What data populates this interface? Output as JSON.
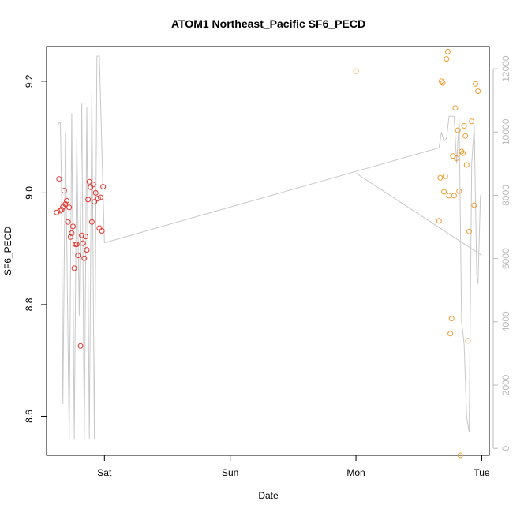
{
  "chart_data": {
    "type": "scatter",
    "title": "ATOM1 Northeast_Pacific SF6_PECD",
    "xlabel": "Date",
    "ylabel": "SF6_PECD",
    "x_ticks": [
      "Sat",
      "Sun",
      "Mon",
      "Tue"
    ],
    "x_tick_values": [
      1.0,
      2.0,
      3.0,
      4.0
    ],
    "xlim": [
      0.54,
      4.06
    ],
    "ylim": [
      8.53,
      9.262
    ],
    "y_ticks": [
      8.6,
      8.8,
      9.0,
      9.2
    ],
    "y_tick_labels": [
      "8.6",
      "8.8",
      "9.0",
      "9.2"
    ],
    "y2lim": [
      -220,
      12700
    ],
    "y2_ticks": [
      0,
      2000,
      4000,
      6000,
      8000,
      10000,
      12000
    ],
    "y2_tick_labels": [
      "0",
      "2000",
      "4000",
      "6000",
      "8000",
      "10000",
      "12000"
    ],
    "colors": {
      "early_points": "#e8302a",
      "late_points": "#f29a2e",
      "line": "#c8c8c8",
      "right_axis": "#bbbbbb"
    },
    "series": [
      {
        "color": "#e8302a",
        "points": [
          [
            0.62,
            8.965
          ],
          [
            0.64,
            9.025
          ],
          [
            0.65,
            8.968
          ],
          [
            0.66,
            8.97
          ],
          [
            0.67,
            8.975
          ],
          [
            0.68,
            9.004
          ],
          [
            0.69,
            8.98
          ],
          [
            0.7,
            8.986
          ],
          [
            0.71,
            8.948
          ],
          [
            0.72,
            8.974
          ],
          [
            0.73,
            8.921
          ],
          [
            0.74,
            8.928
          ],
          [
            0.75,
            8.94
          ],
          [
            0.76,
            8.865
          ],
          [
            0.77,
            8.908
          ],
          [
            0.78,
            8.908
          ],
          [
            0.79,
            8.888
          ],
          [
            0.81,
            8.726
          ],
          [
            0.82,
            8.924
          ],
          [
            0.83,
            8.91
          ],
          [
            0.84,
            8.883
          ],
          [
            0.85,
            8.922
          ],
          [
            0.86,
            8.898
          ],
          [
            0.87,
            8.988
          ],
          [
            0.88,
            9.02
          ],
          [
            0.89,
            9.01
          ],
          [
            0.9,
            8.948
          ],
          [
            0.91,
            9.015
          ],
          [
            0.92,
            8.984
          ],
          [
            0.93,
            9.0
          ],
          [
            0.95,
            8.99
          ],
          [
            0.96,
            8.937
          ],
          [
            0.97,
            8.992
          ],
          [
            0.98,
            8.932
          ],
          [
            0.99,
            9.011
          ]
        ]
      },
      {
        "color": "#f29a2e",
        "points": [
          [
            3.0,
            9.218
          ],
          [
            3.66,
            8.95
          ],
          [
            3.67,
            9.027
          ],
          [
            3.68,
            9.2
          ],
          [
            3.69,
            9.197
          ],
          [
            3.7,
            9.002
          ],
          [
            3.71,
            9.03
          ],
          [
            3.72,
            9.24
          ],
          [
            3.73,
            9.253
          ],
          [
            3.74,
            8.995
          ],
          [
            3.75,
            8.748
          ],
          [
            3.76,
            8.775
          ],
          [
            3.77,
            9.066
          ],
          [
            3.78,
            8.995
          ],
          [
            3.79,
            9.152
          ],
          [
            3.8,
            9.062
          ],
          [
            3.81,
            9.112
          ],
          [
            3.82,
            9.003
          ],
          [
            3.83,
            8.53
          ],
          [
            3.84,
            9.074
          ],
          [
            3.85,
            9.071
          ],
          [
            3.86,
            9.12
          ],
          [
            3.87,
            9.102
          ],
          [
            3.88,
            9.05
          ],
          [
            3.89,
            8.735
          ],
          [
            3.9,
            8.931
          ],
          [
            3.92,
            9.128
          ],
          [
            3.94,
            8.978
          ],
          [
            3.95,
            9.195
          ],
          [
            3.97,
            9.182
          ]
        ]
      }
    ],
    "line_series": {
      "axis": "right",
      "color": "#c8c8c8",
      "segments": [
        [
          [
            0.63,
            10200
          ],
          [
            0.64,
            10300
          ],
          [
            0.65,
            10300
          ],
          [
            0.66,
            8000
          ],
          [
            0.67,
            1400
          ],
          [
            0.69,
            10000
          ],
          [
            0.72,
            300
          ],
          [
            0.74,
            10600
          ],
          [
            0.76,
            300
          ],
          [
            0.78,
            9800
          ],
          [
            0.8,
            4200
          ],
          [
            0.82,
            10900
          ],
          [
            0.84,
            300
          ],
          [
            0.86,
            10800
          ],
          [
            0.88,
            300
          ],
          [
            0.9,
            11300
          ],
          [
            0.92,
            300
          ],
          [
            0.94,
            12400
          ],
          [
            0.96,
            12400
          ],
          [
            1.0,
            6500
          ]
        ],
        [
          [
            1.0,
            6500
          ],
          [
            3.66,
            9500
          ],
          [
            3.68,
            10000
          ],
          [
            3.7,
            9700
          ],
          [
            3.72,
            9800
          ],
          [
            3.74,
            10500
          ],
          [
            3.78,
            10500
          ],
          [
            3.8,
            9000
          ],
          [
            3.82,
            10400
          ],
          [
            3.84,
            4000
          ],
          [
            3.86,
            3300
          ],
          [
            3.88,
            1000
          ],
          [
            3.9,
            500
          ],
          [
            3.92,
            9000
          ],
          [
            3.94,
            10200
          ],
          [
            3.96,
            5500
          ],
          [
            3.97,
            5200
          ],
          [
            3.99,
            8000
          ]
        ],
        [
          [
            3.0,
            8700
          ],
          [
            4.0,
            6100
          ]
        ]
      ]
    }
  }
}
